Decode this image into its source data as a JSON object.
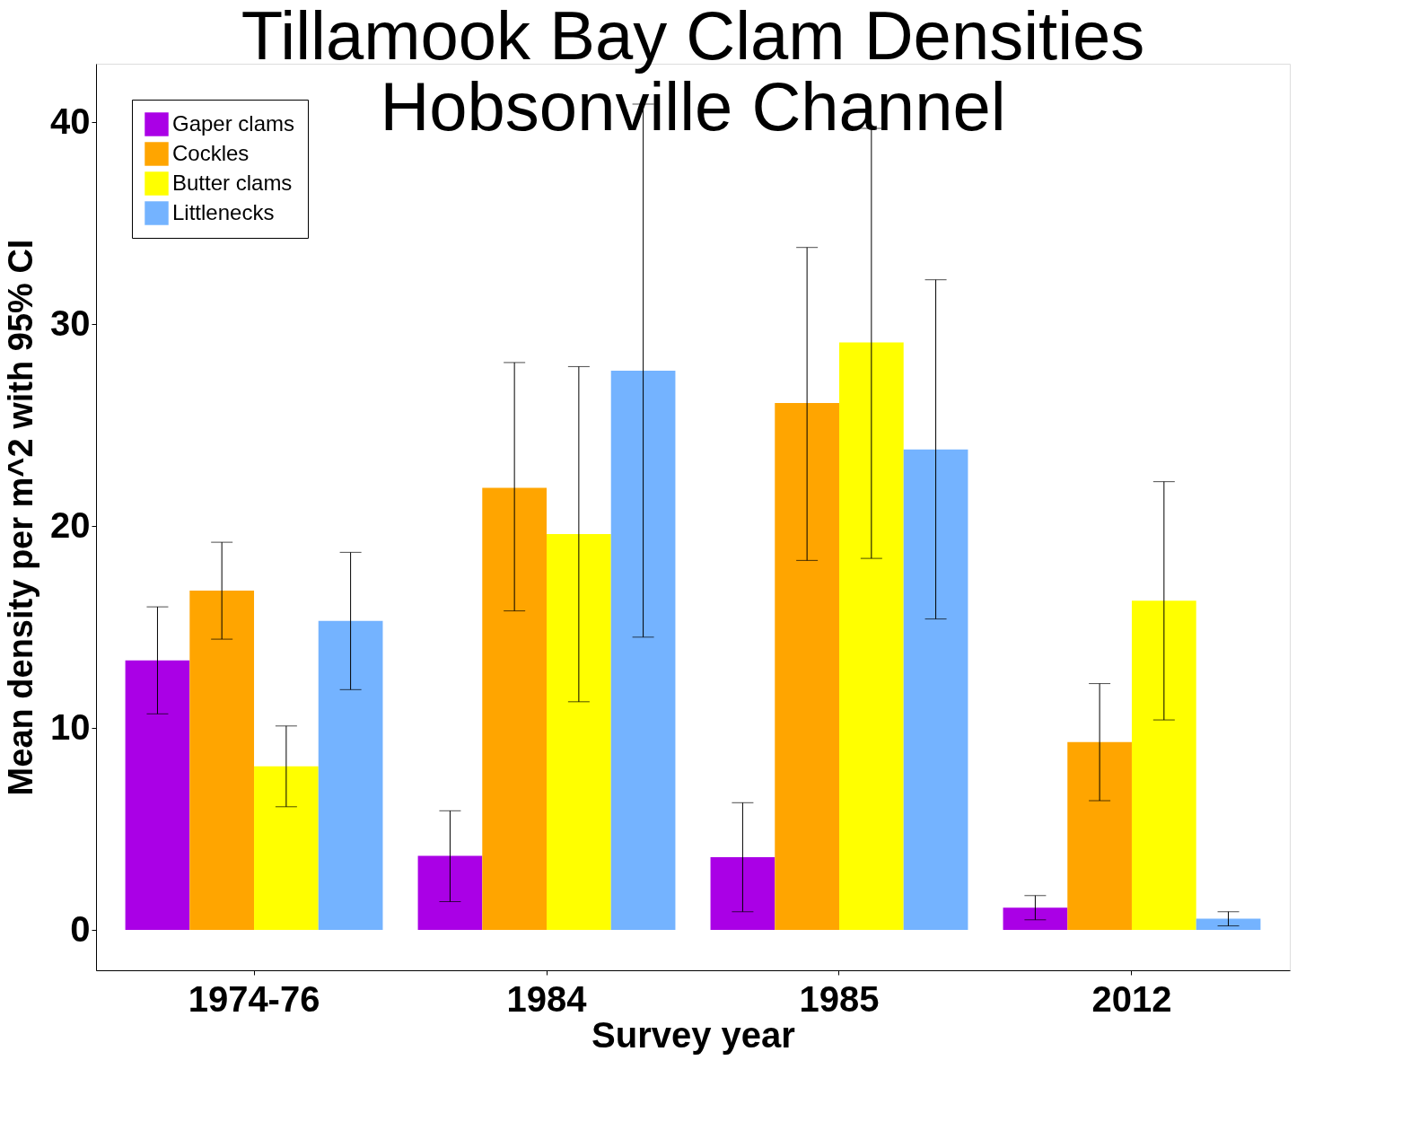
{
  "chart_data": {
    "type": "bar",
    "title": "Tillamook Bay Clam Densities",
    "subtitle": "Hobsonville Channel",
    "xlabel": "Survey year",
    "ylabel": "Mean density per m^2 with 95% CI",
    "categories": [
      "1974-76",
      "1984",
      "1985",
      "2012"
    ],
    "series": [
      {
        "name": "Gaper clams",
        "color": "#aa00e6",
        "values": [
          13.35,
          3.67,
          3.6,
          1.1
        ],
        "errors": [
          [
            10.7,
            16.0
          ],
          [
            1.4,
            5.9
          ],
          [
            0.9,
            6.3
          ],
          [
            0.5,
            1.7
          ]
        ]
      },
      {
        "name": "Cockles",
        "color": "#ffa500",
        "values": [
          16.8,
          21.9,
          26.1,
          9.3
        ],
        "errors": [
          [
            14.4,
            19.2
          ],
          [
            15.8,
            28.1
          ],
          [
            18.3,
            33.8
          ],
          [
            6.4,
            12.2
          ]
        ]
      },
      {
        "name": "Butter clams",
        "color": "#ffff00",
        "values": [
          8.1,
          19.6,
          29.1,
          16.3
        ],
        "errors": [
          [
            6.1,
            10.1
          ],
          [
            11.3,
            27.9
          ],
          [
            18.4,
            39.7
          ],
          [
            10.4,
            22.2
          ]
        ]
      },
      {
        "name": "Littlenecks",
        "color": "#74b3ff",
        "values": [
          15.3,
          27.7,
          23.8,
          0.56
        ],
        "errors": [
          [
            11.9,
            18.7
          ],
          [
            14.5,
            40.9
          ],
          [
            15.4,
            32.2
          ],
          [
            0.2,
            0.9
          ]
        ]
      }
    ],
    "ylim": [
      -2,
      42.9
    ],
    "yticks": [
      0,
      10,
      20,
      30,
      40
    ],
    "grid": false,
    "legend": "top left"
  }
}
